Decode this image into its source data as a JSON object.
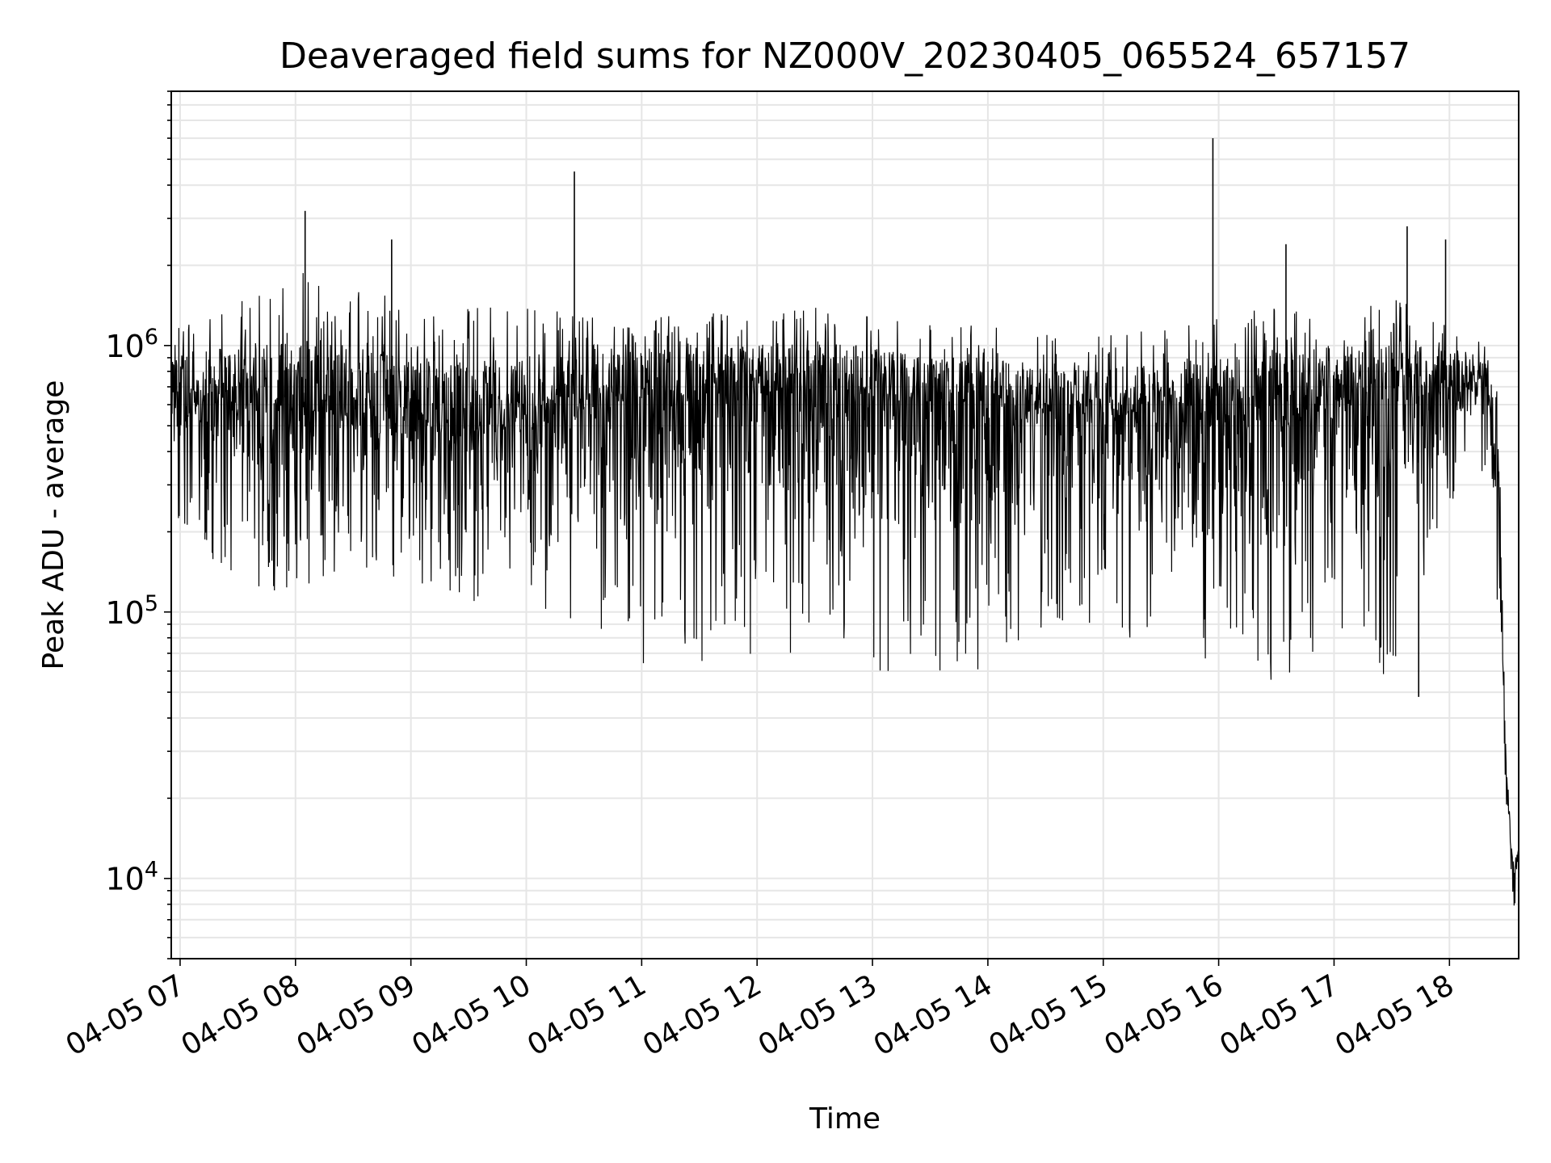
{
  "chart_data": {
    "type": "line",
    "title": "Deaveraged field sums for NZ000V_20230405_065524_657157",
    "xlabel": "Time",
    "ylabel": "Peak ADU - average",
    "x_ticks": [
      "04-05 07",
      "04-05 08",
      "04-05 09",
      "04-05 10",
      "04-05 11",
      "04-05 12",
      "04-05 13",
      "04-05 14",
      "04-05 15",
      "04-05 16",
      "04-05 17",
      "04-05 18"
    ],
    "y_ticks": [
      {
        "base": "10",
        "exp": "4",
        "value": 10000
      },
      {
        "base": "10",
        "exp": "5",
        "value": 100000
      },
      {
        "base": "10",
        "exp": "6",
        "value": 1000000
      }
    ],
    "y_scale": "log",
    "ylim": [
      5000,
      9000000
    ],
    "xlim": [
      "2023-04-05 06:55:24",
      "2023-04-05 18:36:00"
    ],
    "grid": true,
    "line_color": "#000000",
    "grid_color": "#e6e6e6",
    "series": [
      {
        "x": [
          "2023-04-05 06:55:24",
          "2023-04-05 07:30:00",
          "2023-04-05 08:00:00",
          "2023-04-05 08:30:00",
          "2023-04-05 09:00:00",
          "2023-04-05 09:30:00",
          "2023-04-05 10:00:00",
          "2023-04-05 10:30:00",
          "2023-04-05 11:00:00",
          "2023-04-05 11:30:00",
          "2023-04-05 12:00:00",
          "2023-04-05 12:30:00",
          "2023-04-05 13:00:00",
          "2023-04-05 13:30:00",
          "2023-04-05 14:00:00",
          "2023-04-05 14:30:00",
          "2023-04-05 15:00:00",
          "2023-04-05 15:30:00",
          "2023-04-05 16:00:00",
          "2023-04-05 16:30:00",
          "2023-04-05 17:00:00",
          "2023-04-05 17:30:00",
          "2023-04-05 18:00:00",
          "2023-04-05 18:20:00",
          "2023-04-05 18:25:00",
          "2023-04-05 18:30:00",
          "2023-04-05 18:33:00",
          "2023-04-05 18:36:00"
        ],
        "y": [
          600000,
          550000,
          500000,
          480000,
          450000,
          420000,
          500000,
          550000,
          600000,
          620000,
          650000,
          650000,
          640000,
          600000,
          580000,
          550000,
          520000,
          500000,
          500000,
          520000,
          550000,
          600000,
          700000,
          650000,
          200000,
          22000,
          9000,
          12000
        ],
        "y_low": [
          200000,
          120000,
          110000,
          150000,
          130000,
          110000,
          100000,
          80000,
          60000,
          65000,
          70000,
          70000,
          60000,
          60000,
          60000,
          80000,
          90000,
          60000,
          55000,
          55000,
          65000,
          55000,
          250000,
          300000,
          100000,
          15000,
          7000,
          10000
        ],
        "y_high": [
          1300000,
          1600000,
          2000000,
          1600000,
          1500000,
          1400000,
          1400000,
          1300000,
          1300000,
          1300000,
          1400000,
          1500000,
          1300000,
          1200000,
          1200000,
          1100000,
          1100000,
          1300000,
          1300000,
          1500000,
          1200000,
          1600000,
          1200000,
          1100000,
          900000,
          30000,
          12000,
          15000
        ],
        "spikes": [
          {
            "x": "2023-04-05 08:05:00",
            "y": 3200000
          },
          {
            "x": "2023-04-05 08:50:00",
            "y": 2500000
          },
          {
            "x": "2023-04-05 10:25:00",
            "y": 4500000
          },
          {
            "x": "2023-04-05 15:57:00",
            "y": 6000000
          },
          {
            "x": "2023-04-05 16:35:00",
            "y": 2400000
          },
          {
            "x": "2023-04-05 17:38:00",
            "y": 2800000
          },
          {
            "x": "2023-04-05 17:58:00",
            "y": 2500000
          },
          {
            "x": "2023-04-05 17:44:00",
            "y": 48000
          }
        ]
      }
    ]
  }
}
